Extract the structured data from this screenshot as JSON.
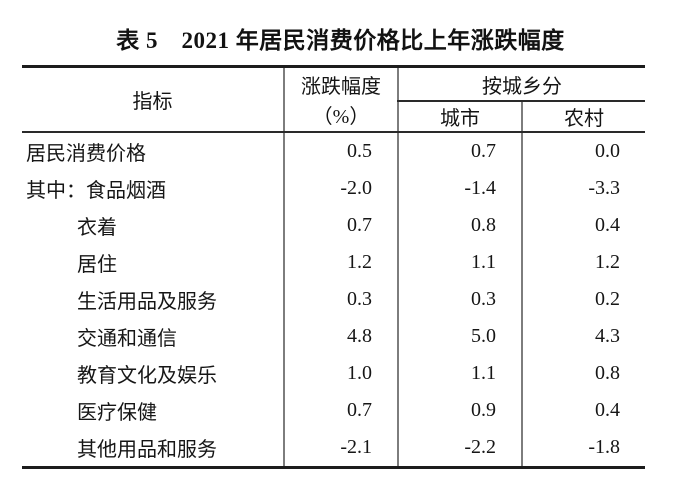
{
  "title": "表 5　2021 年居民消费价格比上年涨跌幅度",
  "table": {
    "header": {
      "indicator": "指标",
      "change": "涨跌幅度",
      "change_unit": "（%）",
      "by_region": "按城乡分",
      "urban": "城市",
      "rural": "农村"
    },
    "rows": [
      {
        "label": "居民消费价格",
        "change": "0.5",
        "urban": "0.7",
        "rural": "0.0"
      },
      {
        "label": "其中：食品烟酒",
        "change": "-2.0",
        "urban": "-1.4",
        "rural": "-3.3"
      },
      {
        "label": "衣着",
        "change": "0.7",
        "urban": "0.8",
        "rural": "0.4"
      },
      {
        "label": "居住",
        "change": "1.2",
        "urban": "1.1",
        "rural": "1.2"
      },
      {
        "label": "生活用品及服务",
        "change": "0.3",
        "urban": "0.3",
        "rural": "0.2"
      },
      {
        "label": "交通和通信",
        "change": "4.8",
        "urban": "5.0",
        "rural": "4.3"
      },
      {
        "label": "教育文化及娱乐",
        "change": "1.0",
        "urban": "1.1",
        "rural": "0.8"
      },
      {
        "label": "医疗保健",
        "change": "0.7",
        "urban": "0.9",
        "rural": "0.4"
      },
      {
        "label": "其他用品和服务",
        "change": "-2.1",
        "urban": "-2.2",
        "rural": "-1.8"
      }
    ]
  },
  "colors": {
    "text": "#161616",
    "thick_rule": "#1c1c1c",
    "thin_rule": "#2a2a2a",
    "vertical_rule": "#7d7d7d",
    "background": "#ffffff"
  },
  "chart_data": {
    "type": "table",
    "title": "表5 2021年居民消费价格比上年涨跌幅度",
    "columns": [
      "指标",
      "涨跌幅度（%）",
      "按城乡分-城市",
      "按城乡分-农村"
    ],
    "column_group": {
      "label": "按城乡分",
      "columns": [
        "城市",
        "农村"
      ]
    },
    "unit": "%",
    "rows": [
      [
        "居民消费价格",
        0.5,
        0.7,
        0.0
      ],
      [
        "其中：食品烟酒",
        -2.0,
        -1.4,
        -3.3
      ],
      [
        "衣着",
        0.7,
        0.8,
        0.4
      ],
      [
        "居住",
        1.2,
        1.1,
        1.2
      ],
      [
        "生活用品及服务",
        0.3,
        0.3,
        0.2
      ],
      [
        "交通和通信",
        4.8,
        5.0,
        4.3
      ],
      [
        "教育文化及娱乐",
        1.0,
        1.1,
        0.8
      ],
      [
        "医疗保健",
        0.7,
        0.9,
        0.4
      ],
      [
        "其他用品和服务",
        -2.1,
        -2.2,
        -1.8
      ]
    ]
  }
}
